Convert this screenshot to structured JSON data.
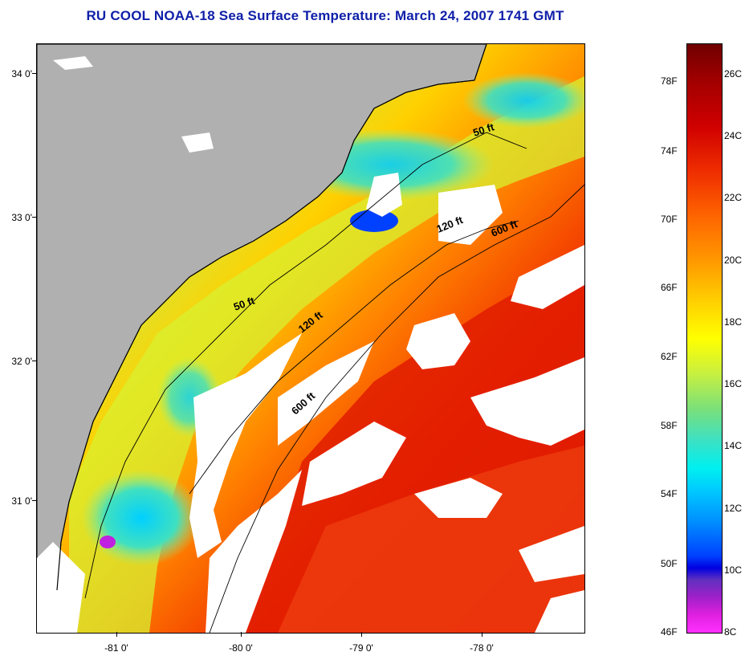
{
  "title": "RU COOL  NOAA-18  Sea Surface Temperature:  March 24, 2007 1741 GMT",
  "lat_labels": [
    "34 0'",
    "33 0'",
    "32 0'",
    "31 0'"
  ],
  "lon_labels": [
    "-81 0'",
    "-80 0'",
    "-79 0'",
    "-78 0'"
  ],
  "isobath_labels": [
    "50 ft",
    "120 ft",
    "600 ft",
    "50 ft",
    "120 ft",
    "600 ft"
  ],
  "colorbar": {
    "fahrenheit": [
      "78F",
      "74F",
      "70F",
      "66F",
      "62F",
      "58F",
      "54F",
      "50F",
      "46F"
    ],
    "celsius": [
      "26C",
      "24C",
      "22C",
      "20C",
      "18C",
      "16C",
      "14C",
      "12C",
      "10C",
      "8C"
    ]
  },
  "colors": {
    "title": "#1020a8",
    "land": "#b0b0b0",
    "cloud": "#ffffff",
    "warm": "#e81800",
    "cool": "#40e0c0"
  }
}
